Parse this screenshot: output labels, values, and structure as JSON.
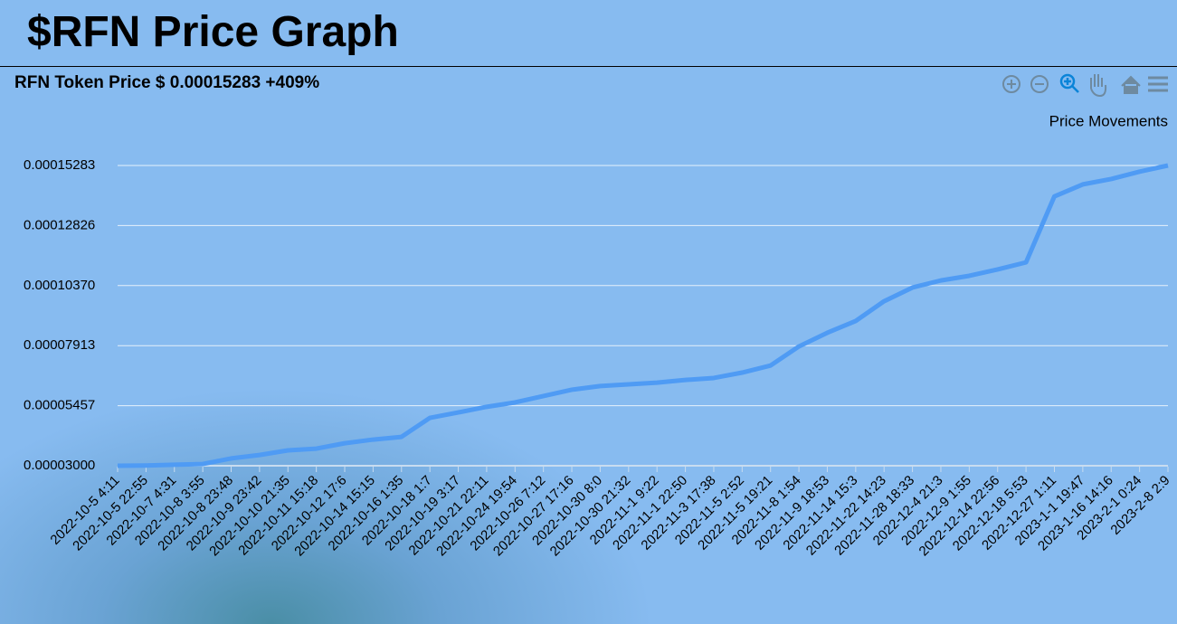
{
  "header": {
    "title": "$RFN Price Graph"
  },
  "chart_data": {
    "type": "line",
    "title": "RFN Token Price $ 0.00015283 +409%",
    "categories": [
      "2022-10-5 4:11",
      "2022-10-5 22:55",
      "2022-10-7 4:31",
      "2022-10-8 3:55",
      "2022-10-8 23:48",
      "2022-10-9 23:42",
      "2022-10-10 21:35",
      "2022-10-11 15:18",
      "2022-10-12 17:6",
      "2022-10-14 15:15",
      "2022-10-16 1:35",
      "2022-10-18 1:7",
      "2022-10-19 3:17",
      "2022-10-21 22:11",
      "2022-10-24 19:54",
      "2022-10-26 7:12",
      "2022-10-27 17:16",
      "2022-10-30 8:0",
      "2022-10-30 21:32",
      "2022-11-1 9:22",
      "2022-11-1 22:50",
      "2022-11-3 17:38",
      "2022-11-5 2:52",
      "2022-11-5 19:21",
      "2022-11-8 1:54",
      "2022-11-9 18:53",
      "2022-11-14 15:3",
      "2022-11-22 14:23",
      "2022-11-28 18:33",
      "2022-12-4 21:3",
      "2022-12-9 1:55",
      "2022-12-14 22:56",
      "2022-12-18 5:53",
      "2022-12-27 1:11",
      "2023-1-1 19:47",
      "2023-1-16 14:16",
      "2023-2-1 0:24",
      "2023-2-8 2:9"
    ],
    "series": [
      {
        "name": "Price Movements",
        "color": "#4f9bf4",
        "values": [
          3e-05,
          3.01e-05,
          3.04e-05,
          3.07e-05,
          3.3e-05,
          3.44e-05,
          3.63e-05,
          3.7e-05,
          3.92e-05,
          4.07e-05,
          4.18e-05,
          4.96e-05,
          5.18e-05,
          5.41e-05,
          5.59e-05,
          5.85e-05,
          6.11e-05,
          6.26e-05,
          6.33e-05,
          6.4e-05,
          6.51e-05,
          6.59e-05,
          6.81e-05,
          7.1e-05,
          7.88e-05,
          8.44e-05,
          8.92e-05,
          9.73e-05,
          0.0001029,
          0.0001058,
          0.0001077,
          0.0001103,
          0.0001132,
          0.0001402,
          0.0001451,
          0.0001473,
          0.0001503,
          0.00015283
        ]
      }
    ],
    "ylim": [
      3e-05,
      0.00015283
    ],
    "yticks": [
      {
        "value": 3e-05,
        "label": "0.00003000"
      },
      {
        "value": 5.457e-05,
        "label": "0.00005457"
      },
      {
        "value": 7.913e-05,
        "label": "0.00007913"
      },
      {
        "value": 0.0001037,
        "label": "0.00010370"
      },
      {
        "value": 0.00012826,
        "label": "0.00012826"
      },
      {
        "value": 0.00015283,
        "label": "0.00015283"
      }
    ],
    "grid": true
  }
}
